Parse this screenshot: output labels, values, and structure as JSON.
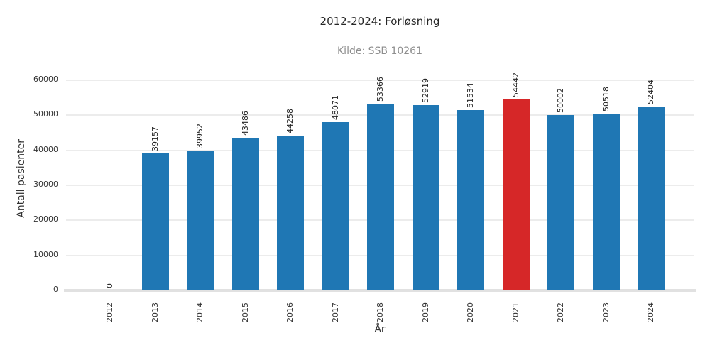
{
  "chart_data": {
    "type": "bar",
    "title": "2012-2024: Forløsning",
    "subtitle": "Kilde: SSB 10261",
    "xlabel": "År",
    "ylabel": "Antall pasienter",
    "categories": [
      "2012",
      "2013",
      "2014",
      "2015",
      "2016",
      "2017",
      "2018",
      "2019",
      "2020",
      "2021",
      "2022",
      "2023",
      "2024"
    ],
    "values": [
      0,
      39157,
      39952,
      43486,
      44258,
      48071,
      53366,
      52919,
      51534,
      54442,
      50002,
      50518,
      52404
    ],
    "value_labels": [
      "0",
      "39157",
      "39952",
      "43486",
      "44258",
      "48071",
      "53366",
      "52919",
      "51534",
      "54442",
      "50002",
      "50518",
      "52404"
    ],
    "highlight_index": 9,
    "highlight_category": "2021",
    "ylim": [
      0,
      60000
    ],
    "yticks": [
      0,
      10000,
      20000,
      30000,
      40000,
      50000,
      60000
    ],
    "ytick_labels": [
      "0",
      "10000",
      "20000",
      "30000",
      "40000",
      "50000",
      "60000"
    ],
    "grid": "horizontal",
    "legend": "none",
    "colors": {
      "bar": "#1f77b4",
      "highlight": "#d62728",
      "grid": "#ececec",
      "baseline": "#e1e1e1",
      "title": "#262626",
      "subtitle": "#8e8e8e",
      "tick_text": "#333333",
      "value_text": "#262626",
      "background": "#ffffff"
    }
  }
}
